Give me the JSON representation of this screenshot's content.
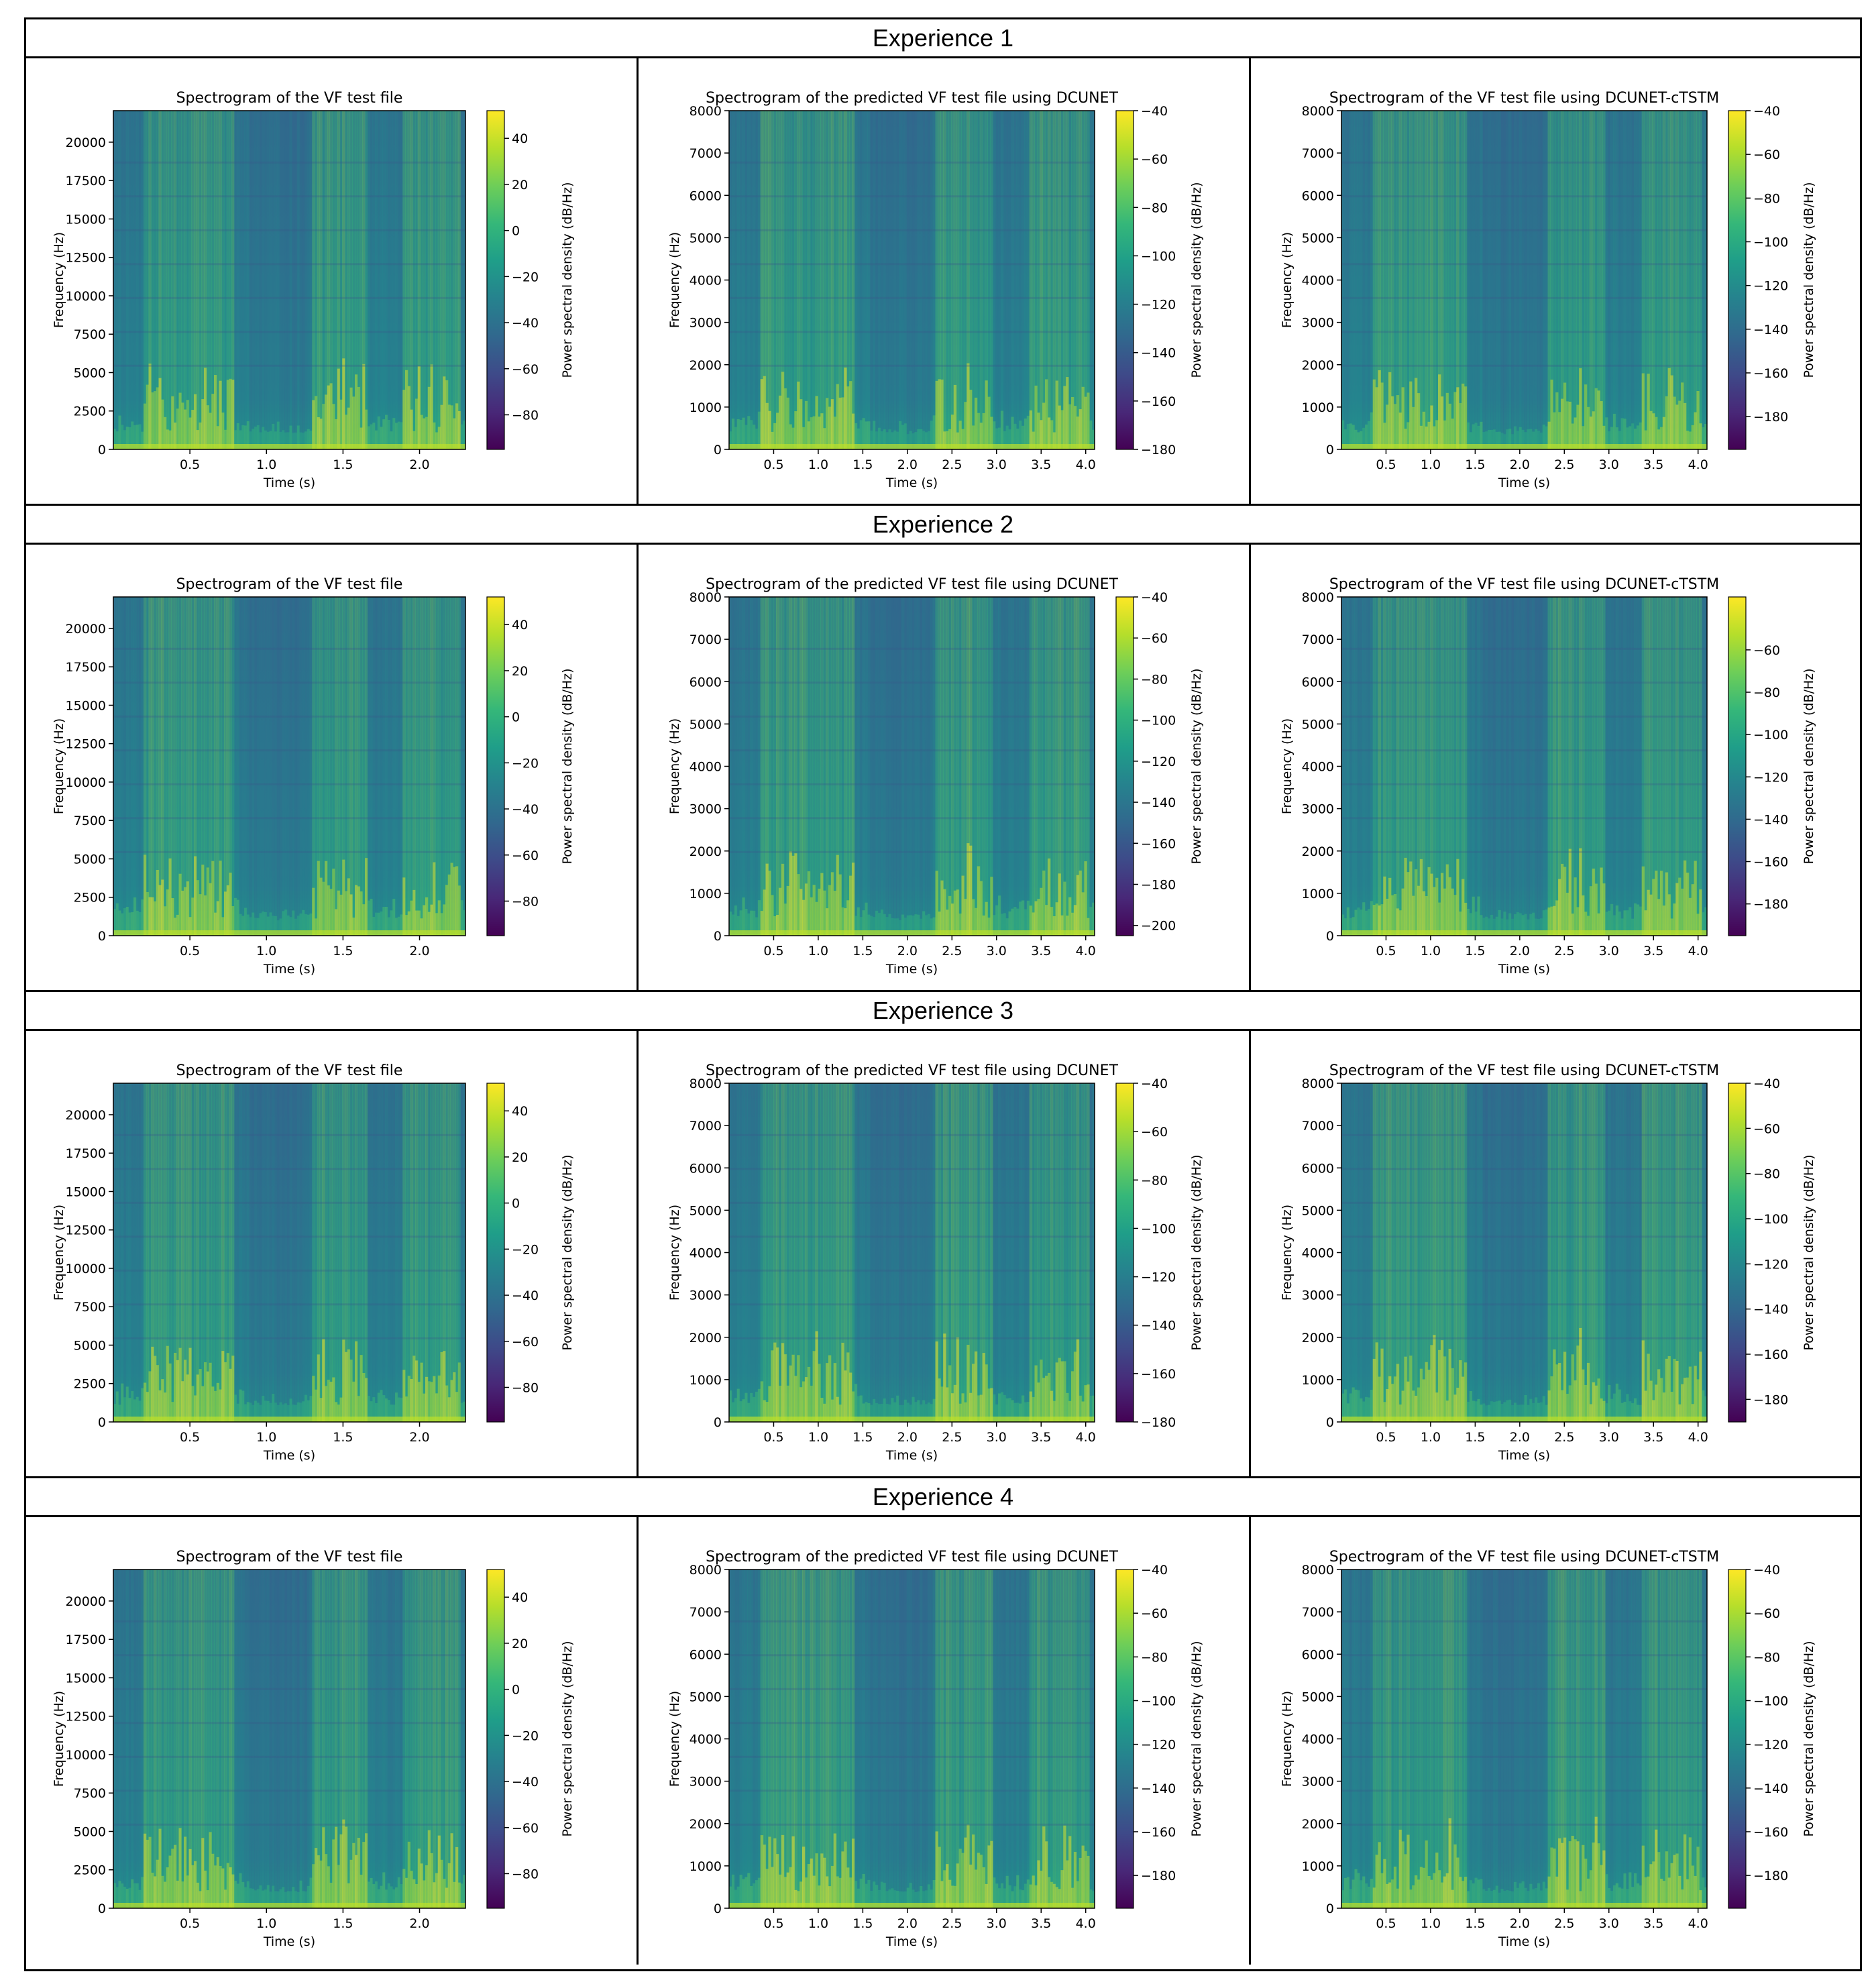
{
  "figure": {
    "experiences": [
      {
        "label": "Experience 1"
      },
      {
        "label": "Experience 2"
      },
      {
        "label": "Experience 3"
      },
      {
        "label": "Experience 4"
      }
    ]
  },
  "chart_data": [
    {
      "type": "heatmap",
      "experience": "Experience 1",
      "title": "Spectrogram of the VF test file",
      "xlabel": "Time (s)",
      "ylabel": "Frequency (Hz)",
      "colorbar_label": "Power spectral density (dB/Hz)",
      "x_ticks": [
        "0.5",
        "1.0",
        "1.5",
        "2.0"
      ],
      "y_ticks": [
        "0",
        "2500",
        "5000",
        "7500",
        "10000",
        "12500",
        "15000",
        "17500",
        "20000"
      ],
      "xlim": [
        0,
        2.3
      ],
      "ylim": [
        0,
        22050
      ],
      "colorbar_ticks": [
        "40",
        "20",
        "0",
        "−20",
        "−40",
        "−60",
        "−80"
      ],
      "clim": [
        -95,
        52
      ]
    },
    {
      "type": "heatmap",
      "experience": "Experience 1",
      "title": "Spectrogram of the predicted VF test file using DCUNET",
      "xlabel": "Time (s)",
      "ylabel": "Frequency (Hz)",
      "colorbar_label": "Power spectral density (dB/Hz)",
      "x_ticks": [
        "0.5",
        "1.0",
        "1.5",
        "2.0",
        "2.5",
        "3.0",
        "3.5",
        "4.0"
      ],
      "y_ticks": [
        "0",
        "1000",
        "2000",
        "3000",
        "4000",
        "5000",
        "6000",
        "7000",
        "8000"
      ],
      "xlim": [
        0,
        4.1
      ],
      "ylim": [
        0,
        8000
      ],
      "colorbar_ticks": [
        "−40",
        "−60",
        "−80",
        "−100",
        "−120",
        "−140",
        "−160",
        "−180"
      ],
      "clim": [
        -180,
        -40
      ]
    },
    {
      "type": "heatmap",
      "experience": "Experience 1",
      "title": "Spectrogram of the VF test file using DCUNET-cTSTM",
      "xlabel": "Time (s)",
      "ylabel": "Frequency (Hz)",
      "colorbar_label": "Power spectral density (dB/Hz)",
      "x_ticks": [
        "0.5",
        "1.0",
        "1.5",
        "2.0",
        "2.5",
        "3.0",
        "3.5",
        "4.0"
      ],
      "y_ticks": [
        "0",
        "1000",
        "2000",
        "3000",
        "4000",
        "5000",
        "6000",
        "7000",
        "8000"
      ],
      "xlim": [
        0,
        4.1
      ],
      "ylim": [
        0,
        8000
      ],
      "colorbar_ticks": [
        "−40",
        "−60",
        "−80",
        "−100",
        "−120",
        "−140",
        "−160",
        "−180"
      ],
      "clim": [
        -195,
        -40
      ]
    },
    {
      "type": "heatmap",
      "experience": "Experience 2",
      "title": "Spectrogram of the VF test file",
      "xlabel": "Time (s)",
      "ylabel": "Frequency (Hz)",
      "colorbar_label": "Power spectral density (dB/Hz)",
      "x_ticks": [
        "0.5",
        "1.0",
        "1.5",
        "2.0"
      ],
      "y_ticks": [
        "0",
        "2500",
        "5000",
        "7500",
        "10000",
        "12500",
        "15000",
        "17500",
        "20000"
      ],
      "xlim": [
        0,
        2.3
      ],
      "ylim": [
        0,
        22050
      ],
      "colorbar_ticks": [
        "40",
        "20",
        "0",
        "−20",
        "−40",
        "−60",
        "−80"
      ],
      "clim": [
        -95,
        52
      ]
    },
    {
      "type": "heatmap",
      "experience": "Experience 2",
      "title": "Spectrogram of the predicted VF test file using DCUNET",
      "xlabel": "Time (s)",
      "ylabel": "Frequency (Hz)",
      "colorbar_label": "Power spectral density (dB/Hz)",
      "x_ticks": [
        "0.5",
        "1.0",
        "1.5",
        "2.0",
        "2.5",
        "3.0",
        "3.5",
        "4.0"
      ],
      "y_ticks": [
        "0",
        "1000",
        "2000",
        "3000",
        "4000",
        "5000",
        "6000",
        "7000",
        "8000"
      ],
      "xlim": [
        0,
        4.1
      ],
      "ylim": [
        0,
        8000
      ],
      "colorbar_ticks": [
        "−40",
        "−60",
        "−80",
        "−100",
        "−120",
        "−140",
        "−160",
        "−180",
        "−200"
      ],
      "clim": [
        -205,
        -40
      ]
    },
    {
      "type": "heatmap",
      "experience": "Experience 2",
      "title": "Spectrogram of the VF test file using DCUNET-cTSTM",
      "xlabel": "Time (s)",
      "ylabel": "Frequency (Hz)",
      "colorbar_label": "Power spectral density (dB/Hz)",
      "x_ticks": [
        "0.5",
        "1.0",
        "1.5",
        "2.0",
        "2.5",
        "3.0",
        "3.5",
        "4.0"
      ],
      "y_ticks": [
        "0",
        "1000",
        "2000",
        "3000",
        "4000",
        "5000",
        "6000",
        "7000",
        "8000"
      ],
      "xlim": [
        0,
        4.1
      ],
      "ylim": [
        0,
        8000
      ],
      "colorbar_ticks": [
        "−60",
        "−80",
        "−100",
        "−120",
        "−140",
        "−160",
        "−180"
      ],
      "clim": [
        -195,
        -35
      ]
    },
    {
      "type": "heatmap",
      "experience": "Experience 3",
      "title": "Spectrogram of the VF test file",
      "xlabel": "Time (s)",
      "ylabel": "Frequency (Hz)",
      "colorbar_label": "Power spectral density (dB/Hz)",
      "x_ticks": [
        "0.5",
        "1.0",
        "1.5",
        "2.0"
      ],
      "y_ticks": [
        "0",
        "2500",
        "5000",
        "7500",
        "10000",
        "12500",
        "15000",
        "17500",
        "20000"
      ],
      "xlim": [
        0,
        2.3
      ],
      "ylim": [
        0,
        22050
      ],
      "colorbar_ticks": [
        "40",
        "20",
        "0",
        "−20",
        "−40",
        "−60",
        "−80"
      ],
      "clim": [
        -95,
        52
      ]
    },
    {
      "type": "heatmap",
      "experience": "Experience 3",
      "title": "Spectrogram of the predicted VF test file using DCUNET",
      "xlabel": "Time (s)",
      "ylabel": "Frequency (Hz)",
      "colorbar_label": "Power spectral density (dB/Hz)",
      "x_ticks": [
        "0.5",
        "1.0",
        "1.5",
        "2.0",
        "2.5",
        "3.0",
        "3.5",
        "4.0"
      ],
      "y_ticks": [
        "0",
        "1000",
        "2000",
        "3000",
        "4000",
        "5000",
        "6000",
        "7000",
        "8000"
      ],
      "xlim": [
        0,
        4.1
      ],
      "ylim": [
        0,
        8000
      ],
      "colorbar_ticks": [
        "−40",
        "−60",
        "−80",
        "−100",
        "−120",
        "−140",
        "−160",
        "−180"
      ],
      "clim": [
        -180,
        -40
      ]
    },
    {
      "type": "heatmap",
      "experience": "Experience 3",
      "title": "Spectrogram of the VF test file using DCUNET-cTSTM",
      "xlabel": "Time (s)",
      "ylabel": "Frequency (Hz)",
      "colorbar_label": "Power spectral density (dB/Hz)",
      "x_ticks": [
        "0.5",
        "1.0",
        "1.5",
        "2.0",
        "2.5",
        "3.0",
        "3.5",
        "4.0"
      ],
      "y_ticks": [
        "0",
        "1000",
        "2000",
        "3000",
        "4000",
        "5000",
        "6000",
        "7000",
        "8000"
      ],
      "xlim": [
        0,
        4.1
      ],
      "ylim": [
        0,
        8000
      ],
      "colorbar_ticks": [
        "−40",
        "−60",
        "−80",
        "−100",
        "−120",
        "−140",
        "−160",
        "−180"
      ],
      "clim": [
        -190,
        -40
      ]
    },
    {
      "type": "heatmap",
      "experience": "Experience 4",
      "title": "Spectrogram of the VF test file",
      "xlabel": "Time (s)",
      "ylabel": "Frequency (Hz)",
      "colorbar_label": "Power spectral density (dB/Hz)",
      "x_ticks": [
        "0.5",
        "1.0",
        "1.5",
        "2.0"
      ],
      "y_ticks": [
        "0",
        "2500",
        "5000",
        "7500",
        "10000",
        "12500",
        "15000",
        "17500",
        "20000"
      ],
      "xlim": [
        0,
        2.3
      ],
      "ylim": [
        0,
        22050
      ],
      "colorbar_ticks": [
        "40",
        "20",
        "0",
        "−20",
        "−40",
        "−60",
        "−80"
      ],
      "clim": [
        -95,
        52
      ]
    },
    {
      "type": "heatmap",
      "experience": "Experience 4",
      "title": "Spectrogram of the predicted VF test file using DCUNET",
      "xlabel": "Time (s)",
      "ylabel": "Frequency (Hz)",
      "colorbar_label": "Power spectral density (dB/Hz)",
      "x_ticks": [
        "0.5",
        "1.0",
        "1.5",
        "2.0",
        "2.5",
        "3.0",
        "3.5",
        "4.0"
      ],
      "y_ticks": [
        "0",
        "1000",
        "2000",
        "3000",
        "4000",
        "5000",
        "6000",
        "7000",
        "8000"
      ],
      "xlim": [
        0,
        4.1
      ],
      "ylim": [
        0,
        8000
      ],
      "colorbar_ticks": [
        "−40",
        "−60",
        "−80",
        "−100",
        "−120",
        "−140",
        "−160",
        "−180"
      ],
      "clim": [
        -195,
        -40
      ]
    },
    {
      "type": "heatmap",
      "experience": "Experience 4",
      "title": "Spectrogram of the VF test file using DCUNET-cTSTM",
      "xlabel": "Time (s)",
      "ylabel": "Frequency (Hz)",
      "colorbar_label": "Power spectral density (dB/Hz)",
      "x_ticks": [
        "0.5",
        "1.0",
        "1.5",
        "2.0",
        "2.5",
        "3.0",
        "3.5",
        "4.0"
      ],
      "y_ticks": [
        "0",
        "1000",
        "2000",
        "3000",
        "4000",
        "5000",
        "6000",
        "7000",
        "8000"
      ],
      "xlim": [
        0,
        4.1
      ],
      "ylim": [
        0,
        8000
      ],
      "colorbar_ticks": [
        "−40",
        "−60",
        "−80",
        "−100",
        "−120",
        "−140",
        "−160",
        "−180"
      ],
      "clim": [
        -195,
        -40
      ]
    }
  ]
}
